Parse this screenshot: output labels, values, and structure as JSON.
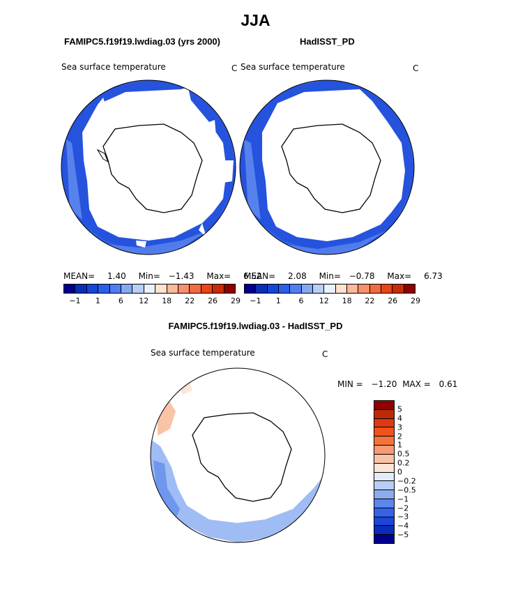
{
  "main_title": "JJA",
  "panels": {
    "model": {
      "name": "FAMIPC5.f19f19.lwdiag.03 (yrs 2000)",
      "variable": "Sea surface temperature",
      "units": "C",
      "stats": {
        "mean_label": "MEAN=",
        "mean": "1.40",
        "min_label": "Min=",
        "min": "−1.43",
        "max_label": "Max=",
        "max": "6.52"
      }
    },
    "obs": {
      "name": "HadISST_PD",
      "variable": "Sea surface temperature",
      "units": "C",
      "stats": {
        "mean_label": "MEAN=",
        "mean": "2.08",
        "min_label": "Min=",
        "min": "−0.78",
        "max_label": "Max=",
        "max": "6.73"
      }
    },
    "diff": {
      "name": "FAMIPC5.f19f19.lwdiag.03 - HadISST_PD",
      "variable": "Sea surface temperature",
      "units": "C",
      "stats": {
        "min_label": "MIN =",
        "min": "−1.20",
        "max_label": "MAX =",
        "max": "0.61"
      }
    }
  },
  "colorbar_top": {
    "labels": [
      "−1",
      "1",
      "6",
      "12",
      "18",
      "22",
      "26",
      "29"
    ],
    "colors": [
      "#00008c",
      "#0a2fb5",
      "#1446d8",
      "#2a5fe8",
      "#4f7ef0",
      "#86a8f2",
      "#b9cff6",
      "#e9f1fb",
      "#fde2d0",
      "#fbb99b",
      "#f7906d",
      "#f26a3f",
      "#e94515",
      "#c72d08",
      "#8f0000"
    ]
  },
  "colorbar_diff": {
    "labels": [
      "5",
      "4",
      "3",
      "2",
      "1",
      "0.5",
      "0.2",
      "0",
      "−0.2",
      "−0.5",
      "−1",
      "−2",
      "−3",
      "−4",
      "−5"
    ],
    "colors": [
      "#8f0000",
      "#bf2a06",
      "#dd3a10",
      "#f0521e",
      "#f5733b",
      "#f99a72",
      "#fbc3a6",
      "#fde5d8",
      "#e2ecfa",
      "#b8cdf4",
      "#8cacf0",
      "#5c86ec",
      "#3563e6",
      "#1d46d8",
      "#0a2cb8",
      "#00008c"
    ]
  },
  "icons": {
    "land": "antarctica-outline"
  }
}
